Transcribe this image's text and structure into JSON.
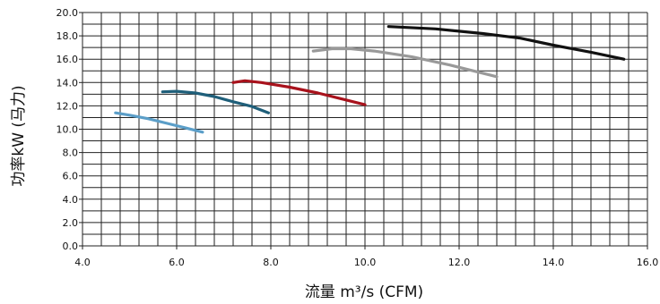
{
  "chart_data": {
    "type": "line",
    "xlabel": "流量 m³/s (CFM)",
    "ylabel": "功率kW (马力)",
    "xlim": [
      4.0,
      16.0
    ],
    "ylim": [
      0.0,
      20.0
    ],
    "x_ticks": [
      4.0,
      6.0,
      8.0,
      10.0,
      12.0,
      14.0,
      16.0
    ],
    "x_tick_labels": [
      "4.0",
      "6.0",
      "8.0",
      "10.0",
      "12.0",
      "14.0",
      "16.0"
    ],
    "y_ticks": [
      0.0,
      2.0,
      4.0,
      6.0,
      8.0,
      10.0,
      12.0,
      14.0,
      16.0,
      18.0,
      20.0
    ],
    "y_tick_labels": [
      "0.0",
      "2.0",
      "4.0",
      "6.0",
      "8.0",
      "10.0",
      "12.0",
      "14.0",
      "16.0",
      "18.0",
      "20.0"
    ],
    "x_minor_step": 0.4,
    "y_step": 1.0,
    "grid": true,
    "series": [
      {
        "color": "#5b9ec8",
        "x": [
          4.7,
          5.0,
          5.4,
          5.8,
          6.2,
          6.55
        ],
        "y": [
          11.4,
          11.2,
          10.9,
          10.5,
          10.1,
          9.75
        ]
      },
      {
        "color": "#1f5f7a",
        "x": [
          5.7,
          6.0,
          6.4,
          6.8,
          7.2,
          7.6,
          7.95
        ],
        "y": [
          13.2,
          13.25,
          13.1,
          12.8,
          12.35,
          11.95,
          11.4
        ]
      },
      {
        "color": "#a8121c",
        "x": [
          7.2,
          7.45,
          7.8,
          8.4,
          9.0,
          9.5,
          10.0
        ],
        "y": [
          14.0,
          14.15,
          14.0,
          13.6,
          13.1,
          12.6,
          12.1
        ]
      },
      {
        "color": "#999999",
        "x": [
          8.9,
          9.3,
          9.7,
          10.2,
          11.0,
          11.8,
          12.4,
          12.8
        ],
        "y": [
          16.7,
          16.9,
          16.9,
          16.7,
          16.2,
          15.5,
          14.9,
          14.5
        ]
      },
      {
        "color": "#111111",
        "x": [
          10.5,
          11.5,
          12.5,
          13.3,
          14.0,
          14.8,
          15.5
        ],
        "y": [
          18.8,
          18.6,
          18.2,
          17.8,
          17.2,
          16.6,
          16.0
        ]
      }
    ]
  }
}
